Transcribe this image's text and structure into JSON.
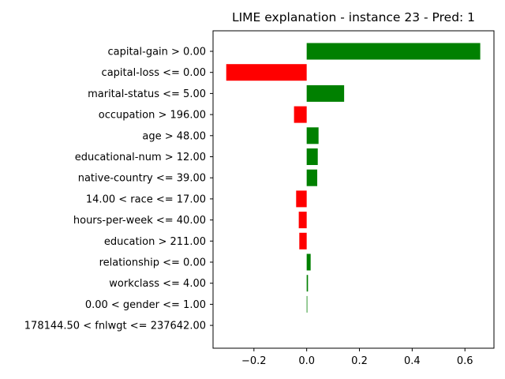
{
  "chart_data": {
    "type": "bar",
    "orientation": "horizontal",
    "title": "LIME explanation - instance 23 - Pred: 1",
    "xlabel": "",
    "ylabel": "",
    "xlim": [
      -0.355,
      0.71
    ],
    "xticks": [
      -0.2,
      0.0,
      0.2,
      0.4,
      0.6
    ],
    "xtick_labels": [
      "−0.2",
      "0.0",
      "0.2",
      "0.4",
      "0.6"
    ],
    "grid": false,
    "legend": "none",
    "positive_color": "#008000",
    "negative_color": "#ff0000",
    "categories": [
      "capital-gain > 0.00",
      "capital-loss <= 0.00",
      "marital-status <= 5.00",
      "occupation > 196.00",
      "age > 48.00",
      "educational-num > 12.00",
      "native-country <= 39.00",
      "14.00 < race <= 17.00",
      "hours-per-week <= 40.00",
      "education > 211.00",
      "relationship <= 0.00",
      "workclass <= 4.00",
      "0.00 < gender <= 1.00",
      "178144.50 < fnlwgt <= 237642.00"
    ],
    "values": [
      0.658,
      -0.305,
      0.142,
      -0.048,
      0.045,
      0.042,
      0.04,
      -0.04,
      -0.03,
      -0.028,
      0.015,
      0.005,
      0.002,
      0.0
    ]
  }
}
